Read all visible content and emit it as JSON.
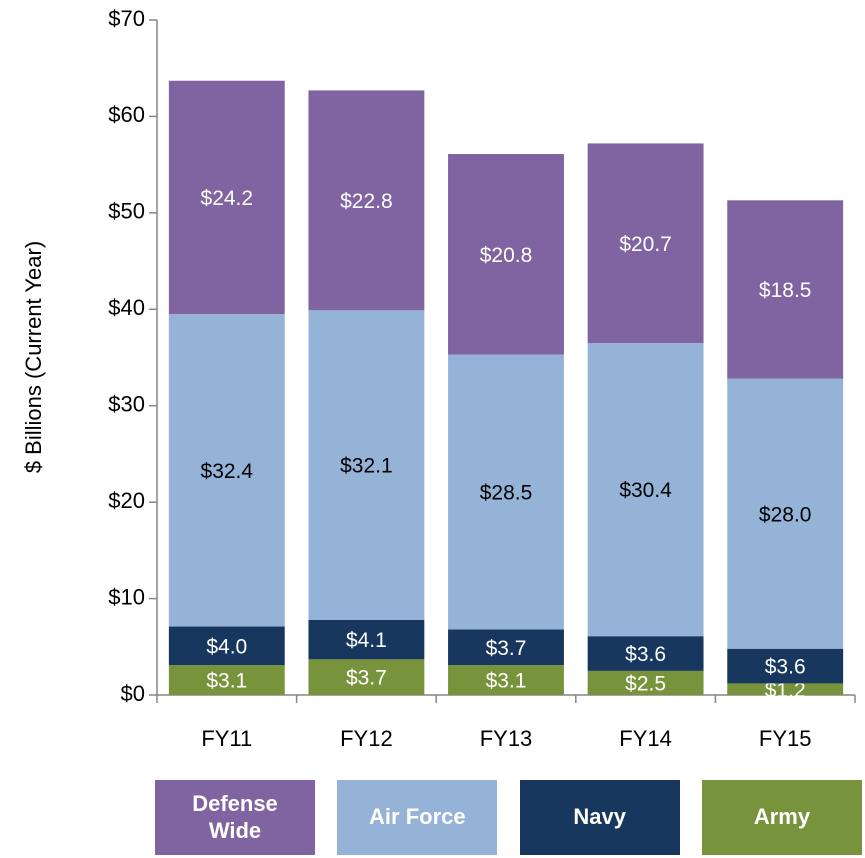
{
  "chart_data": {
    "type": "stacked_bar",
    "y_axis_label": "$ Billions (Current Year)",
    "categories": [
      "FY11",
      "FY12",
      "FY13",
      "FY14",
      "FY15"
    ],
    "series": [
      {
        "name": "Army",
        "color": "#77933c",
        "values": [
          3.1,
          3.7,
          3.1,
          2.5,
          1.2
        ],
        "value_labels": [
          "$3.1",
          "$3.7",
          "$3.1",
          "$2.5",
          "$1.2"
        ]
      },
      {
        "name": "Navy",
        "color": "#17375e",
        "values": [
          4.0,
          4.1,
          3.7,
          3.6,
          3.6
        ],
        "value_labels": [
          "$4.0",
          "$4.1",
          "$3.7",
          "$3.6",
          "$3.6"
        ]
      },
      {
        "name": "Air Force",
        "color": "#95b3d7",
        "values": [
          32.4,
          32.1,
          28.5,
          30.4,
          28.0
        ],
        "value_labels": [
          "$32.4",
          "$32.1",
          "$28.5",
          "$30.4",
          "$28.0"
        ]
      },
      {
        "name": "Defense Wide",
        "color": "#8064a2",
        "values": [
          24.2,
          22.8,
          20.8,
          20.7,
          18.5
        ],
        "value_labels": [
          "$24.2",
          "$22.8",
          "$20.8",
          "$20.7",
          "$18.5"
        ]
      }
    ],
    "ylim": [
      0,
      70
    ],
    "yticks": [
      {
        "value": 0,
        "label": "$0"
      },
      {
        "value": 10,
        "label": "$10"
      },
      {
        "value": 20,
        "label": "$20"
      },
      {
        "value": 30,
        "label": "$30"
      },
      {
        "value": 40,
        "label": "$40"
      },
      {
        "value": 50,
        "label": "$50"
      },
      {
        "value": 60,
        "label": "$60"
      },
      {
        "value": 70,
        "label": "$70"
      }
    ],
    "grid": false,
    "legend": "bottom"
  }
}
